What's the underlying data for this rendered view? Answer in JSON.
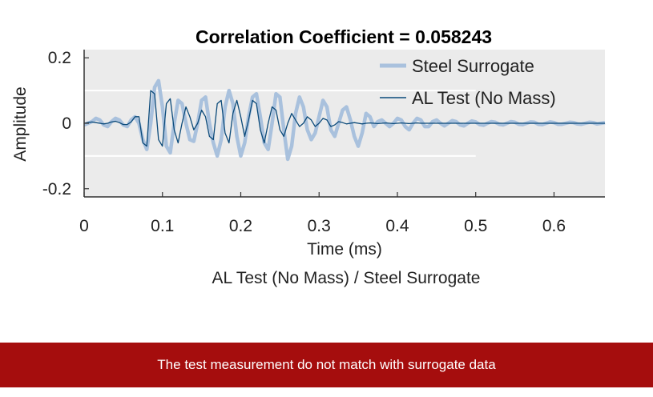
{
  "caption": "AL Test (No Mass) / Steel Surrogate",
  "banner_text": "The test measurement do not match with surrogate data",
  "colors": {
    "plot_background": "#ebebeb",
    "steel_surrogate": "#a9c1dd",
    "al_test": "#0b4a7a",
    "banner": "#a50d0d"
  },
  "chart_data": {
    "type": "line",
    "title": "Correlation Coefficient = 0.058243",
    "xlabel": "Time (ms)",
    "ylabel": "Amplitude",
    "xlim": [
      0,
      0.665
    ],
    "ylim": [
      -0.225,
      0.225
    ],
    "xticks": [
      0,
      0.1,
      0.2,
      0.3,
      0.4,
      0.5,
      0.6
    ],
    "xtick_labels": [
      "0",
      "0.1",
      "0.2",
      "0.3",
      "0.4",
      "0.5",
      "0.6"
    ],
    "yticks": [
      0.2,
      0,
      -0.2
    ],
    "ytick_labels": [
      "0.2",
      "0",
      "-0.2"
    ],
    "grid": false,
    "legend_placement": "top-right",
    "series": [
      {
        "name": "Steel Surrogate",
        "x": [
          0,
          0.005,
          0.01,
          0.015,
          0.02,
          0.025,
          0.03,
          0.035,
          0.04,
          0.045,
          0.05,
          0.055,
          0.06,
          0.065,
          0.07,
          0.075,
          0.08,
          0.085,
          0.09,
          0.095,
          0.1,
          0.105,
          0.11,
          0.115,
          0.12,
          0.125,
          0.13,
          0.135,
          0.14,
          0.145,
          0.15,
          0.155,
          0.16,
          0.165,
          0.17,
          0.175,
          0.18,
          0.185,
          0.19,
          0.195,
          0.2,
          0.205,
          0.21,
          0.215,
          0.22,
          0.225,
          0.23,
          0.235,
          0.24,
          0.245,
          0.25,
          0.255,
          0.26,
          0.265,
          0.27,
          0.275,
          0.28,
          0.285,
          0.29,
          0.295,
          0.3,
          0.305,
          0.31,
          0.315,
          0.32,
          0.325,
          0.33,
          0.335,
          0.34,
          0.345,
          0.35,
          0.355,
          0.36,
          0.365,
          0.37,
          0.375,
          0.38,
          0.385,
          0.39,
          0.395,
          0.4,
          0.405,
          0.41,
          0.415,
          0.42,
          0.425,
          0.43,
          0.435,
          0.44,
          0.445,
          0.45,
          0.455,
          0.46,
          0.465,
          0.47,
          0.475,
          0.48,
          0.485,
          0.49,
          0.495,
          0.5,
          0.505,
          0.51,
          0.515,
          0.52,
          0.525,
          0.53,
          0.535,
          0.54,
          0.545,
          0.55,
          0.555,
          0.56,
          0.565,
          0.57,
          0.575,
          0.58,
          0.585,
          0.59,
          0.595,
          0.6,
          0.605,
          0.61,
          0.615,
          0.62,
          0.625,
          0.63,
          0.635,
          0.64,
          0.645,
          0.65,
          0.655,
          0.66,
          0.665
        ],
        "y": [
          -0.005,
          0.0,
          0.005,
          0.015,
          0.01,
          -0.005,
          -0.01,
          0.005,
          0.015,
          0.01,
          -0.005,
          -0.01,
          0.01,
          0.02,
          0.0,
          -0.05,
          -0.08,
          0.0,
          0.11,
          0.13,
          0.05,
          -0.07,
          -0.09,
          0.0,
          0.07,
          0.06,
          0.0,
          -0.05,
          -0.055,
          0.0,
          0.07,
          0.08,
          0.0,
          -0.06,
          -0.1,
          -0.05,
          0.05,
          0.1,
          0.06,
          -0.04,
          -0.1,
          -0.06,
          0.02,
          0.08,
          0.09,
          0.02,
          -0.06,
          -0.08,
          0.0,
          0.09,
          0.08,
          -0.02,
          -0.11,
          -0.07,
          0.03,
          0.08,
          0.05,
          -0.02,
          -0.05,
          -0.03,
          0.02,
          0.07,
          0.05,
          -0.02,
          -0.04,
          0.0,
          0.04,
          0.05,
          0.01,
          -0.04,
          -0.07,
          -0.03,
          0.03,
          0.02,
          -0.01,
          0.005,
          0.01,
          0.0,
          -0.01,
          0.0,
          0.015,
          0.01,
          -0.01,
          -0.02,
          0.0,
          0.015,
          0.01,
          -0.01,
          -0.01,
          0.005,
          0.01,
          0.0,
          -0.008,
          0.0,
          0.008,
          0.005,
          -0.005,
          -0.008,
          0.0,
          0.007,
          0.004,
          -0.004,
          -0.006,
          0.0,
          0.005,
          0.003,
          -0.003,
          -0.005,
          0.0,
          0.005,
          0.003,
          -0.003,
          -0.004,
          0.0,
          0.004,
          0.003,
          -0.003,
          -0.004,
          0.0,
          0.004,
          0.002,
          -0.003,
          -0.003,
          0.0,
          0.003,
          0.002,
          -0.002,
          -0.003,
          0.0,
          0.003,
          0.002,
          -0.002,
          0.0,
          0.002
        ]
      },
      {
        "name": "AL Test (No Mass)",
        "x": [
          0,
          0.005,
          0.01,
          0.015,
          0.02,
          0.025,
          0.03,
          0.035,
          0.04,
          0.045,
          0.05,
          0.055,
          0.06,
          0.065,
          0.07,
          0.075,
          0.08,
          0.085,
          0.09,
          0.095,
          0.1,
          0.105,
          0.11,
          0.115,
          0.12,
          0.125,
          0.13,
          0.135,
          0.14,
          0.145,
          0.15,
          0.155,
          0.16,
          0.165,
          0.17,
          0.175,
          0.18,
          0.185,
          0.19,
          0.195,
          0.2,
          0.205,
          0.21,
          0.215,
          0.22,
          0.225,
          0.23,
          0.235,
          0.24,
          0.245,
          0.25,
          0.255,
          0.26,
          0.265,
          0.27,
          0.275,
          0.28,
          0.285,
          0.29,
          0.295,
          0.3,
          0.305,
          0.31,
          0.315,
          0.32,
          0.325,
          0.33,
          0.335,
          0.34,
          0.345,
          0.35,
          0.355,
          0.36,
          0.365,
          0.37,
          0.375,
          0.38,
          0.385,
          0.39,
          0.395,
          0.4,
          0.405,
          0.41,
          0.415,
          0.42,
          0.425,
          0.43,
          0.435,
          0.44,
          0.445,
          0.45,
          0.455,
          0.46,
          0.465,
          0.47,
          0.475,
          0.48,
          0.485,
          0.49,
          0.495,
          0.5,
          0.505,
          0.51,
          0.515,
          0.52,
          0.525,
          0.53,
          0.535,
          0.54,
          0.545,
          0.55,
          0.555,
          0.56,
          0.565,
          0.57,
          0.575,
          0.58,
          0.585,
          0.59,
          0.595,
          0.6,
          0.605,
          0.61,
          0.615,
          0.62,
          0.625,
          0.63,
          0.635,
          0.64,
          0.645,
          0.65,
          0.655,
          0.66,
          0.665
        ],
        "y": [
          0.0,
          0.002,
          0.004,
          0.002,
          0.0,
          -0.002,
          0.0,
          0.004,
          0.006,
          0.002,
          -0.004,
          -0.004,
          0.004,
          0.02,
          0.02,
          -0.06,
          -0.07,
          0.1,
          0.09,
          -0.05,
          -0.07,
          0.06,
          0.075,
          -0.02,
          -0.06,
          0.0,
          0.05,
          0.02,
          -0.02,
          0.0,
          0.04,
          0.02,
          -0.04,
          -0.05,
          0.06,
          0.07,
          -0.03,
          -0.06,
          0.03,
          0.07,
          0.02,
          -0.04,
          0.01,
          0.07,
          0.06,
          -0.02,
          -0.06,
          0.0,
          0.05,
          0.04,
          -0.02,
          -0.04,
          0.0,
          0.03,
          0.01,
          -0.01,
          0.0,
          0.02,
          0.01,
          -0.01,
          0.0,
          0.015,
          0.01,
          -0.01,
          -0.005,
          0.005,
          0.002,
          -0.002,
          0.0,
          0.002,
          0.0,
          -0.002,
          0.0,
          0.001,
          0.0,
          -0.001,
          0.0,
          0.001,
          0.0,
          -0.001,
          0.0,
          0.001,
          0.0,
          -0.001,
          0.0,
          0.001,
          0.0,
          0.0,
          0.0,
          0.0,
          0.0,
          0.0,
          0.0,
          0.0,
          0.0,
          0.0,
          0.0,
          0.0,
          0.0,
          0.0,
          0.0,
          0.0,
          0.0,
          0.0,
          0.0,
          0.0,
          0.0,
          0.0,
          0.0,
          0.0,
          0.0,
          0.0,
          0.0,
          0.0,
          0.0,
          0.0,
          0.0,
          0.0,
          0.0,
          0.0,
          0.0,
          0.0,
          0.0,
          0.0,
          0.0,
          0.0,
          0.0,
          0.0,
          0.0,
          0.0,
          0.0,
          0.0,
          0.0,
          0.0
        ]
      }
    ]
  }
}
